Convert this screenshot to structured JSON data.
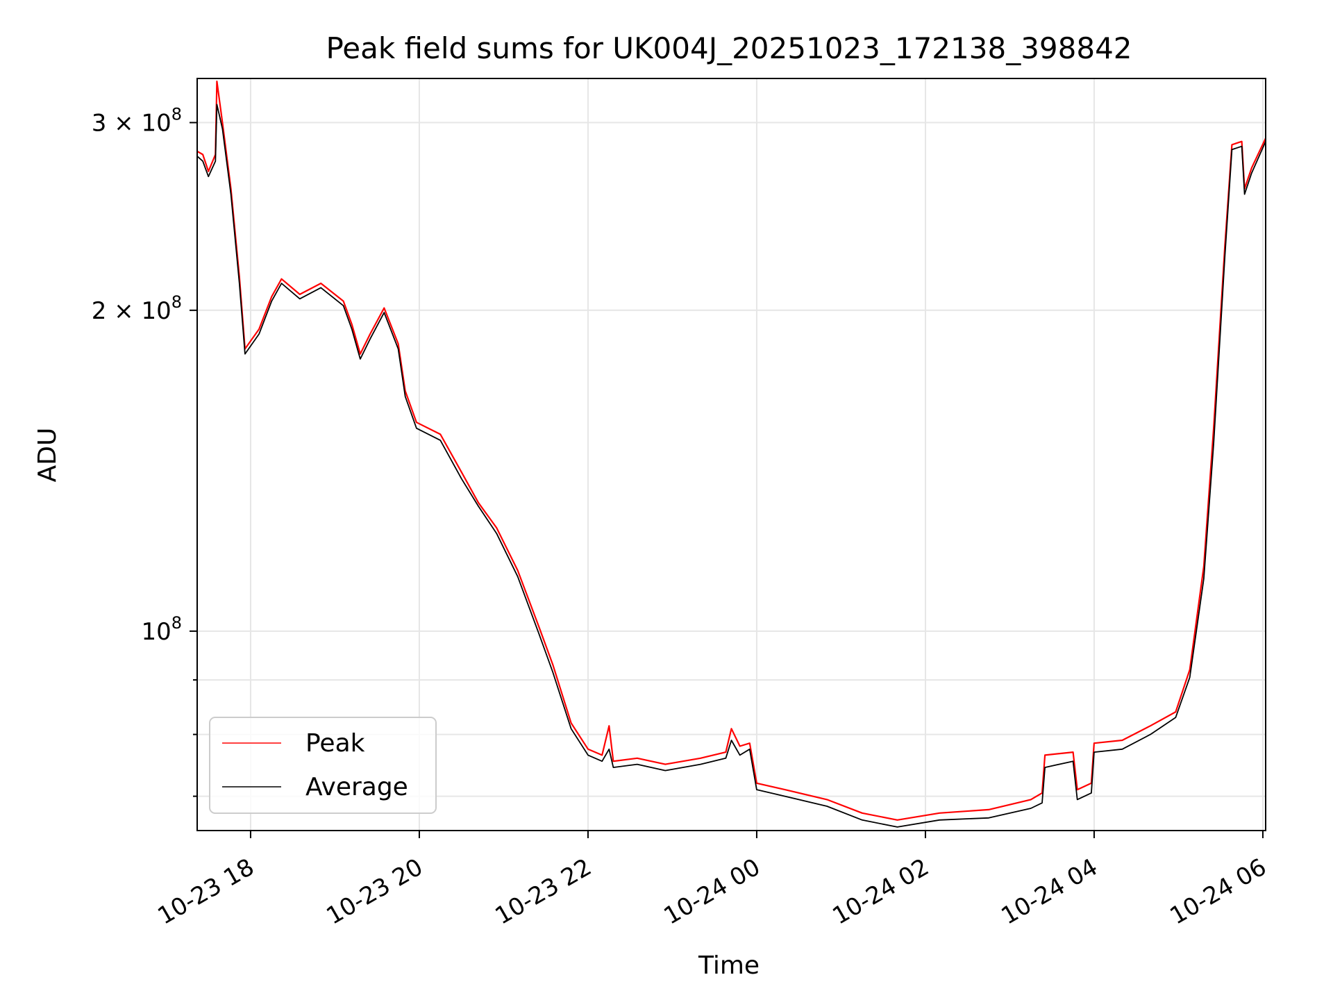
{
  "chart_data": {
    "type": "line",
    "title": "Peak field sums for UK004J_20251023_172138_398842",
    "xlabel": "Time",
    "ylabel": "ADU",
    "y_scale": "log",
    "xlim": [
      "2025-10-23 17:22",
      "2025-10-24 06:02"
    ],
    "ylim": [
      65000000,
      330000000
    ],
    "grid": true,
    "legend_position": "lower-left",
    "x_ticks": [
      {
        "value": "2025-10-23 18:00",
        "label": "10-23 18"
      },
      {
        "value": "2025-10-23 20:00",
        "label": "10-23 20"
      },
      {
        "value": "2025-10-23 22:00",
        "label": "10-23 22"
      },
      {
        "value": "2025-10-24 00:00",
        "label": "10-24 00"
      },
      {
        "value": "2025-10-24 02:00",
        "label": "10-24 02"
      },
      {
        "value": "2025-10-24 04:00",
        "label": "10-24 04"
      },
      {
        "value": "2025-10-24 06:00",
        "label": "10-24 06"
      }
    ],
    "y_ticks": [
      {
        "value": 100000000,
        "base": "10",
        "exp": "8"
      },
      {
        "value": 200000000,
        "base": "2 × 10",
        "exp": "8"
      },
      {
        "value": 300000000,
        "base": "3 × 10",
        "exp": "8"
      }
    ],
    "y_minor_ticks": [
      70000000,
      80000000,
      90000000
    ],
    "series": [
      {
        "name": "Peak",
        "color": "#ff0000",
        "points": [
          [
            "2025-10-23 17:22",
            282000000
          ],
          [
            "2025-10-23 17:26",
            280000000
          ],
          [
            "2025-10-23 17:30",
            270000000
          ],
          [
            "2025-10-23 17:35",
            280000000
          ],
          [
            "2025-10-23 17:36",
            328000000
          ],
          [
            "2025-10-23 17:40",
            300000000
          ],
          [
            "2025-10-23 17:46",
            260000000
          ],
          [
            "2025-10-23 17:52",
            215000000
          ],
          [
            "2025-10-23 17:56",
            184000000
          ],
          [
            "2025-10-23 18:06",
            192000000
          ],
          [
            "2025-10-23 18:15",
            206000000
          ],
          [
            "2025-10-23 18:22",
            214000000
          ],
          [
            "2025-10-23 18:35",
            207000000
          ],
          [
            "2025-10-23 18:50",
            212000000
          ],
          [
            "2025-10-23 19:06",
            204000000
          ],
          [
            "2025-10-23 19:12",
            194000000
          ],
          [
            "2025-10-23 19:18",
            182000000
          ],
          [
            "2025-10-23 19:25",
            190000000
          ],
          [
            "2025-10-23 19:35",
            201000000
          ],
          [
            "2025-10-23 19:45",
            186000000
          ],
          [
            "2025-10-23 19:50",
            168000000
          ],
          [
            "2025-10-23 19:58",
            157000000
          ],
          [
            "2025-10-23 20:15",
            153000000
          ],
          [
            "2025-10-23 20:30",
            141000000
          ],
          [
            "2025-10-23 20:42",
            132000000
          ],
          [
            "2025-10-23 20:55",
            125000000
          ],
          [
            "2025-10-23 21:10",
            114000000
          ],
          [
            "2025-10-23 21:25",
            101000000
          ],
          [
            "2025-10-23 21:35",
            93000000
          ],
          [
            "2025-10-23 21:48",
            82000000
          ],
          [
            "2025-10-23 22:00",
            77500000
          ],
          [
            "2025-10-23 22:10",
            76500000
          ],
          [
            "2025-10-23 22:15",
            81500000
          ],
          [
            "2025-10-23 22:18",
            75500000
          ],
          [
            "2025-10-23 22:35",
            76000000
          ],
          [
            "2025-10-23 22:55",
            75000000
          ],
          [
            "2025-10-23 23:20",
            76000000
          ],
          [
            "2025-10-23 23:38",
            77000000
          ],
          [
            "2025-10-23 23:42",
            81000000
          ],
          [
            "2025-10-23 23:48",
            78000000
          ],
          [
            "2025-10-23 23:55",
            78500000
          ],
          [
            "2025-10-24 00:00",
            72000000
          ],
          [
            "2025-10-24 00:20",
            71000000
          ],
          [
            "2025-10-24 00:50",
            69500000
          ],
          [
            "2025-10-24 01:15",
            67500000
          ],
          [
            "2025-10-24 01:40",
            66500000
          ],
          [
            "2025-10-24 02:10",
            67500000
          ],
          [
            "2025-10-24 02:45",
            68000000
          ],
          [
            "2025-10-24 03:15",
            69500000
          ],
          [
            "2025-10-24 03:23",
            70500000
          ],
          [
            "2025-10-24 03:25",
            76500000
          ],
          [
            "2025-10-24 03:45",
            77000000
          ],
          [
            "2025-10-24 03:48",
            71000000
          ],
          [
            "2025-10-24 03:58",
            72000000
          ],
          [
            "2025-10-24 04:00",
            78500000
          ],
          [
            "2025-10-24 04:20",
            79000000
          ],
          [
            "2025-10-24 04:40",
            81500000
          ],
          [
            "2025-10-24 04:58",
            84000000
          ],
          [
            "2025-10-24 05:08",
            92000000
          ],
          [
            "2025-10-24 05:18",
            115000000
          ],
          [
            "2025-10-24 05:25",
            155000000
          ],
          [
            "2025-10-24 05:33",
            230000000
          ],
          [
            "2025-10-24 05:38",
            286000000
          ],
          [
            "2025-10-24 05:45",
            288000000
          ],
          [
            "2025-10-24 05:47",
            260000000
          ],
          [
            "2025-10-24 05:52",
            272000000
          ],
          [
            "2025-10-24 06:02",
            290000000
          ]
        ]
      },
      {
        "name": "Average",
        "color": "#000000",
        "points": [
          [
            "2025-10-23 17:22",
            279000000
          ],
          [
            "2025-10-23 17:26",
            276000000
          ],
          [
            "2025-10-23 17:30",
            267000000
          ],
          [
            "2025-10-23 17:35",
            276000000
          ],
          [
            "2025-10-23 17:36",
            312000000
          ],
          [
            "2025-10-23 17:40",
            296000000
          ],
          [
            "2025-10-23 17:46",
            257000000
          ],
          [
            "2025-10-23 17:52",
            212000000
          ],
          [
            "2025-10-23 17:56",
            182000000
          ],
          [
            "2025-10-23 18:06",
            190000000
          ],
          [
            "2025-10-23 18:15",
            204000000
          ],
          [
            "2025-10-23 18:22",
            212000000
          ],
          [
            "2025-10-23 18:35",
            205000000
          ],
          [
            "2025-10-23 18:50",
            210000000
          ],
          [
            "2025-10-23 19:06",
            202000000
          ],
          [
            "2025-10-23 19:12",
            192000000
          ],
          [
            "2025-10-23 19:18",
            180000000
          ],
          [
            "2025-10-23 19:25",
            188000000
          ],
          [
            "2025-10-23 19:35",
            199000000
          ],
          [
            "2025-10-23 19:45",
            184000000
          ],
          [
            "2025-10-23 19:50",
            166000000
          ],
          [
            "2025-10-23 19:58",
            155000000
          ],
          [
            "2025-10-23 20:15",
            151000000
          ],
          [
            "2025-10-23 20:30",
            139000000
          ],
          [
            "2025-10-23 20:42",
            131000000
          ],
          [
            "2025-10-23 20:55",
            123500000
          ],
          [
            "2025-10-23 21:10",
            112500000
          ],
          [
            "2025-10-23 21:25",
            99500000
          ],
          [
            "2025-10-23 21:35",
            91500000
          ],
          [
            "2025-10-23 21:48",
            81000000
          ],
          [
            "2025-10-23 22:00",
            76500000
          ],
          [
            "2025-10-23 22:10",
            75500000
          ],
          [
            "2025-10-23 22:15",
            77500000
          ],
          [
            "2025-10-23 22:18",
            74500000
          ],
          [
            "2025-10-23 22:35",
            75000000
          ],
          [
            "2025-10-23 22:55",
            74000000
          ],
          [
            "2025-10-23 23:20",
            75000000
          ],
          [
            "2025-10-23 23:38",
            76000000
          ],
          [
            "2025-10-23 23:42",
            79000000
          ],
          [
            "2025-10-23 23:48",
            76500000
          ],
          [
            "2025-10-23 23:55",
            77500000
          ],
          [
            "2025-10-24 00:00",
            71000000
          ],
          [
            "2025-10-24 00:20",
            70000000
          ],
          [
            "2025-10-24 00:50",
            68500000
          ],
          [
            "2025-10-24 01:15",
            66500000
          ],
          [
            "2025-10-24 01:40",
            65500000
          ],
          [
            "2025-10-24 02:10",
            66500000
          ],
          [
            "2025-10-24 02:45",
            66800000
          ],
          [
            "2025-10-24 03:15",
            68200000
          ],
          [
            "2025-10-24 03:23",
            69000000
          ],
          [
            "2025-10-24 03:25",
            74500000
          ],
          [
            "2025-10-24 03:45",
            75500000
          ],
          [
            "2025-10-24 03:48",
            69500000
          ],
          [
            "2025-10-24 03:58",
            70500000
          ],
          [
            "2025-10-24 04:00",
            77000000
          ],
          [
            "2025-10-24 04:20",
            77500000
          ],
          [
            "2025-10-24 04:40",
            80000000
          ],
          [
            "2025-10-24 04:58",
            83000000
          ],
          [
            "2025-10-24 05:08",
            90500000
          ],
          [
            "2025-10-24 05:18",
            112000000
          ],
          [
            "2025-10-24 05:25",
            150000000
          ],
          [
            "2025-10-24 05:33",
            225000000
          ],
          [
            "2025-10-24 05:38",
            283000000
          ],
          [
            "2025-10-24 05:45",
            285000000
          ],
          [
            "2025-10-24 05:47",
            257000000
          ],
          [
            "2025-10-24 05:52",
            269000000
          ],
          [
            "2025-10-24 06:02",
            288000000
          ]
        ]
      }
    ]
  }
}
